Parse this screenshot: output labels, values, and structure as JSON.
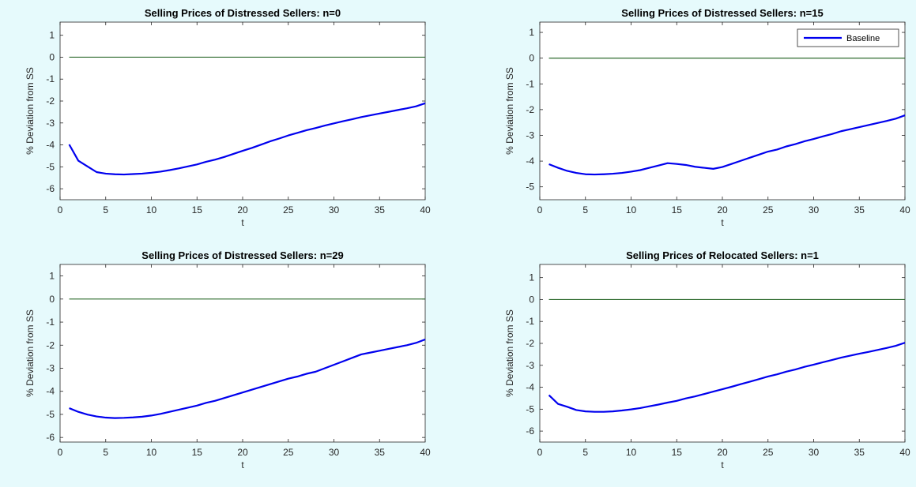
{
  "figure": {
    "background": "#e6fafc"
  },
  "colors": {
    "series": "#0000ee",
    "reference": "#2e6b2e",
    "axis": "#262626"
  },
  "chart_data": [
    {
      "type": "line",
      "title": "Selling Prices of Distressed Sellers: n=0",
      "xlabel": "t",
      "ylabel": "% Deviation from SS",
      "xlim": [
        0,
        40
      ],
      "ylim": [
        -6.5,
        1.6
      ],
      "xticks": [
        0,
        5,
        10,
        15,
        20,
        25,
        30,
        35,
        40
      ],
      "yticks": [
        1,
        0,
        -1,
        -2,
        -3,
        -4,
        -5,
        -6
      ],
      "grid": false,
      "reference_line_y": 0,
      "series": [
        {
          "x": [
            1,
            2,
            3,
            4,
            5,
            6,
            7,
            8,
            9,
            10,
            11,
            12,
            13,
            14,
            15,
            16,
            17,
            18,
            19,
            20,
            21,
            22,
            23,
            24,
            25,
            26,
            27,
            28,
            29,
            30,
            31,
            32,
            33,
            34,
            35,
            36,
            37,
            38,
            39,
            40
          ],
          "y": [
            -3.98,
            -4.72,
            -4.98,
            -5.24,
            -5.31,
            -5.34,
            -5.35,
            -5.33,
            -5.31,
            -5.27,
            -5.22,
            -5.15,
            -5.07,
            -4.98,
            -4.89,
            -4.77,
            -4.67,
            -4.55,
            -4.41,
            -4.27,
            -4.14,
            -3.99,
            -3.84,
            -3.71,
            -3.57,
            -3.45,
            -3.33,
            -3.23,
            -3.12,
            -3.02,
            -2.92,
            -2.83,
            -2.73,
            -2.65,
            -2.57,
            -2.49,
            -2.41,
            -2.33,
            -2.24,
            -2.1
          ]
        }
      ]
    },
    {
      "type": "line",
      "title": "Selling Prices of Distressed Sellers: n=15",
      "xlabel": "t",
      "ylabel": "% Deviation from SS",
      "xlim": [
        0,
        40
      ],
      "ylim": [
        -5.5,
        1.4
      ],
      "xticks": [
        0,
        5,
        10,
        15,
        20,
        25,
        30,
        35,
        40
      ],
      "yticks": [
        1,
        0,
        -1,
        -2,
        -3,
        -4,
        -5
      ],
      "grid": false,
      "reference_line_y": 0,
      "legend": {
        "location": "top-right",
        "entries": [
          "Baseline"
        ]
      },
      "series": [
        {
          "name": "Baseline",
          "x": [
            1,
            2,
            3,
            4,
            5,
            6,
            7,
            8,
            9,
            10,
            11,
            12,
            13,
            14,
            15,
            16,
            17,
            18,
            19,
            20,
            21,
            22,
            23,
            24,
            25,
            26,
            27,
            28,
            29,
            30,
            31,
            32,
            33,
            34,
            35,
            36,
            37,
            38,
            39,
            40
          ],
          "y": [
            -4.12,
            -4.26,
            -4.38,
            -4.46,
            -4.51,
            -4.52,
            -4.51,
            -4.49,
            -4.46,
            -4.41,
            -4.35,
            -4.26,
            -4.17,
            -4.08,
            -4.11,
            -4.15,
            -4.22,
            -4.26,
            -4.3,
            -4.23,
            -4.11,
            -3.99,
            -3.87,
            -3.75,
            -3.63,
            -3.55,
            -3.43,
            -3.34,
            -3.23,
            -3.14,
            -3.04,
            -2.95,
            -2.84,
            -2.76,
            -2.68,
            -2.6,
            -2.52,
            -2.44,
            -2.35,
            -2.22
          ]
        }
      ]
    },
    {
      "type": "line",
      "title": "Selling Prices of Distressed Sellers: n=29",
      "xlabel": "t",
      "ylabel": "% Deviation from SS",
      "xlim": [
        0,
        40
      ],
      "ylim": [
        -6.2,
        1.5
      ],
      "xticks": [
        0,
        5,
        10,
        15,
        20,
        25,
        30,
        35,
        40
      ],
      "yticks": [
        1,
        0,
        -1,
        -2,
        -3,
        -4,
        -5,
        -6
      ],
      "grid": false,
      "reference_line_y": 0,
      "series": [
        {
          "x": [
            1,
            2,
            3,
            4,
            5,
            6,
            7,
            8,
            9,
            10,
            11,
            12,
            13,
            14,
            15,
            16,
            17,
            18,
            19,
            20,
            21,
            22,
            23,
            24,
            25,
            26,
            27,
            28,
            29,
            30,
            31,
            32,
            33,
            34,
            35,
            36,
            37,
            38,
            39,
            40
          ],
          "y": [
            -4.73,
            -4.89,
            -5.01,
            -5.09,
            -5.14,
            -5.16,
            -5.15,
            -5.13,
            -5.1,
            -5.05,
            -4.98,
            -4.89,
            -4.8,
            -4.71,
            -4.62,
            -4.5,
            -4.41,
            -4.29,
            -4.17,
            -4.05,
            -3.93,
            -3.81,
            -3.69,
            -3.57,
            -3.45,
            -3.36,
            -3.24,
            -3.15,
            -3.0,
            -2.85,
            -2.7,
            -2.55,
            -2.4,
            -2.32,
            -2.24,
            -2.16,
            -2.08,
            -2.0,
            -1.9,
            -1.75
          ]
        }
      ]
    },
    {
      "type": "line",
      "title": "Selling Prices of Relocated Sellers: n=1",
      "xlabel": "t",
      "ylabel": "% Deviation from SS",
      "xlim": [
        0,
        40
      ],
      "ylim": [
        -6.5,
        1.6
      ],
      "xticks": [
        0,
        5,
        10,
        15,
        20,
        25,
        30,
        35,
        40
      ],
      "yticks": [
        1,
        0,
        -1,
        -2,
        -3,
        -4,
        -5,
        -6
      ],
      "grid": false,
      "reference_line_y": 0,
      "series": [
        {
          "x": [
            1,
            2,
            3,
            4,
            5,
            6,
            7,
            8,
            9,
            10,
            11,
            12,
            13,
            14,
            15,
            16,
            17,
            18,
            19,
            20,
            21,
            22,
            23,
            24,
            25,
            26,
            27,
            28,
            29,
            30,
            31,
            32,
            33,
            34,
            35,
            36,
            37,
            38,
            39,
            40
          ],
          "y": [
            -4.36,
            -4.76,
            -4.89,
            -5.04,
            -5.1,
            -5.12,
            -5.12,
            -5.1,
            -5.06,
            -5.01,
            -4.95,
            -4.87,
            -4.79,
            -4.7,
            -4.62,
            -4.51,
            -4.42,
            -4.31,
            -4.2,
            -4.09,
            -3.98,
            -3.86,
            -3.75,
            -3.63,
            -3.51,
            -3.41,
            -3.29,
            -3.19,
            -3.07,
            -2.97,
            -2.86,
            -2.76,
            -2.65,
            -2.56,
            -2.47,
            -2.39,
            -2.3,
            -2.21,
            -2.11,
            -1.97
          ]
        }
      ]
    }
  ]
}
